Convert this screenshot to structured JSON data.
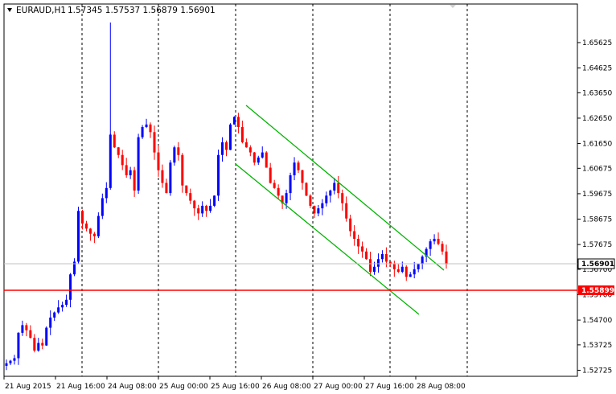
{
  "chart": {
    "symbol_timeframe": "EURAUD,H1",
    "ohlc": "1.57345 1.57537 1.56879 1.56901",
    "current_price_label": "1.56901",
    "horizontal_level_label": "1.55899",
    "level_color": "#ff0000",
    "bull_color": "#0000ff",
    "bear_color": "#ff0000",
    "channel_color": "#00b400",
    "dropdown_icon": "triangle-down-icon"
  },
  "chart_data": {
    "type": "candlestick",
    "y_axis_ticks": [
      "1.65625",
      "1.64625",
      "1.63650",
      "1.62650",
      "1.61650",
      "1.60675",
      "1.59675",
      "1.58675",
      "1.57675",
      "1.56700",
      "1.55700",
      "1.54700",
      "1.53725",
      "1.52725"
    ],
    "x_axis_labels": [
      "21 Aug 2015",
      "21 Aug 16:00",
      "24 Aug 08:00",
      "25 Aug 00:00",
      "25 Aug 16:00",
      "26 Aug 08:00",
      "27 Aug 00:00",
      "27 Aug 16:00",
      "28 Aug 08:00"
    ],
    "ylim": [
      1.5255,
      1.6613
    ],
    "horizontal_level": 1.55899,
    "current_price": 1.56901,
    "channel_upper": [
      {
        "x": "25 Aug 18:00",
        "y": 1.6285
      },
      {
        "x": "28 Aug 10:00",
        "y": 1.5652
      }
    ],
    "channel_lower": [
      {
        "x": "25 Aug 16:00",
        "y": 1.6075
      },
      {
        "x": "28 Aug 00:00",
        "y": 1.5491
      }
    ],
    "approx_close_path": [
      1.53,
      1.531,
      1.532,
      1.542,
      1.545,
      1.543,
      1.54,
      1.535,
      1.538,
      1.537,
      1.544,
      1.548,
      1.55,
      1.552,
      1.553,
      1.555,
      1.565,
      1.57,
      1.59,
      1.585,
      1.583,
      1.581,
      1.58,
      1.588,
      1.595,
      1.599,
      1.62,
      1.615,
      1.612,
      1.608,
      1.604,
      1.606,
      1.598,
      1.619,
      1.623,
      1.624,
      1.621,
      1.613,
      1.606,
      1.601,
      1.597,
      1.609,
      1.615,
      1.612,
      1.6,
      1.597,
      1.594,
      1.591,
      1.589,
      1.592,
      1.59,
      1.592,
      1.596,
      1.612,
      1.617,
      1.614,
      1.624,
      1.627,
      1.623,
      1.617,
      1.615,
      1.613,
      1.609,
      1.611,
      1.613,
      1.607,
      1.601,
      1.599,
      1.596,
      1.593,
      1.597,
      1.604,
      1.609,
      1.606,
      1.601,
      1.596,
      1.592,
      1.589,
      1.591,
      1.593,
      1.596,
      1.598,
      1.601,
      1.597,
      1.593,
      1.587,
      1.582,
      1.579,
      1.576,
      1.574,
      1.571,
      1.566,
      1.568,
      1.571,
      1.573,
      1.57,
      1.569,
      1.567,
      1.566,
      1.568,
      1.564,
      1.565,
      1.567,
      1.569,
      1.572,
      1.575,
      1.578,
      1.579,
      1.577,
      1.574,
      1.569
    ]
  }
}
